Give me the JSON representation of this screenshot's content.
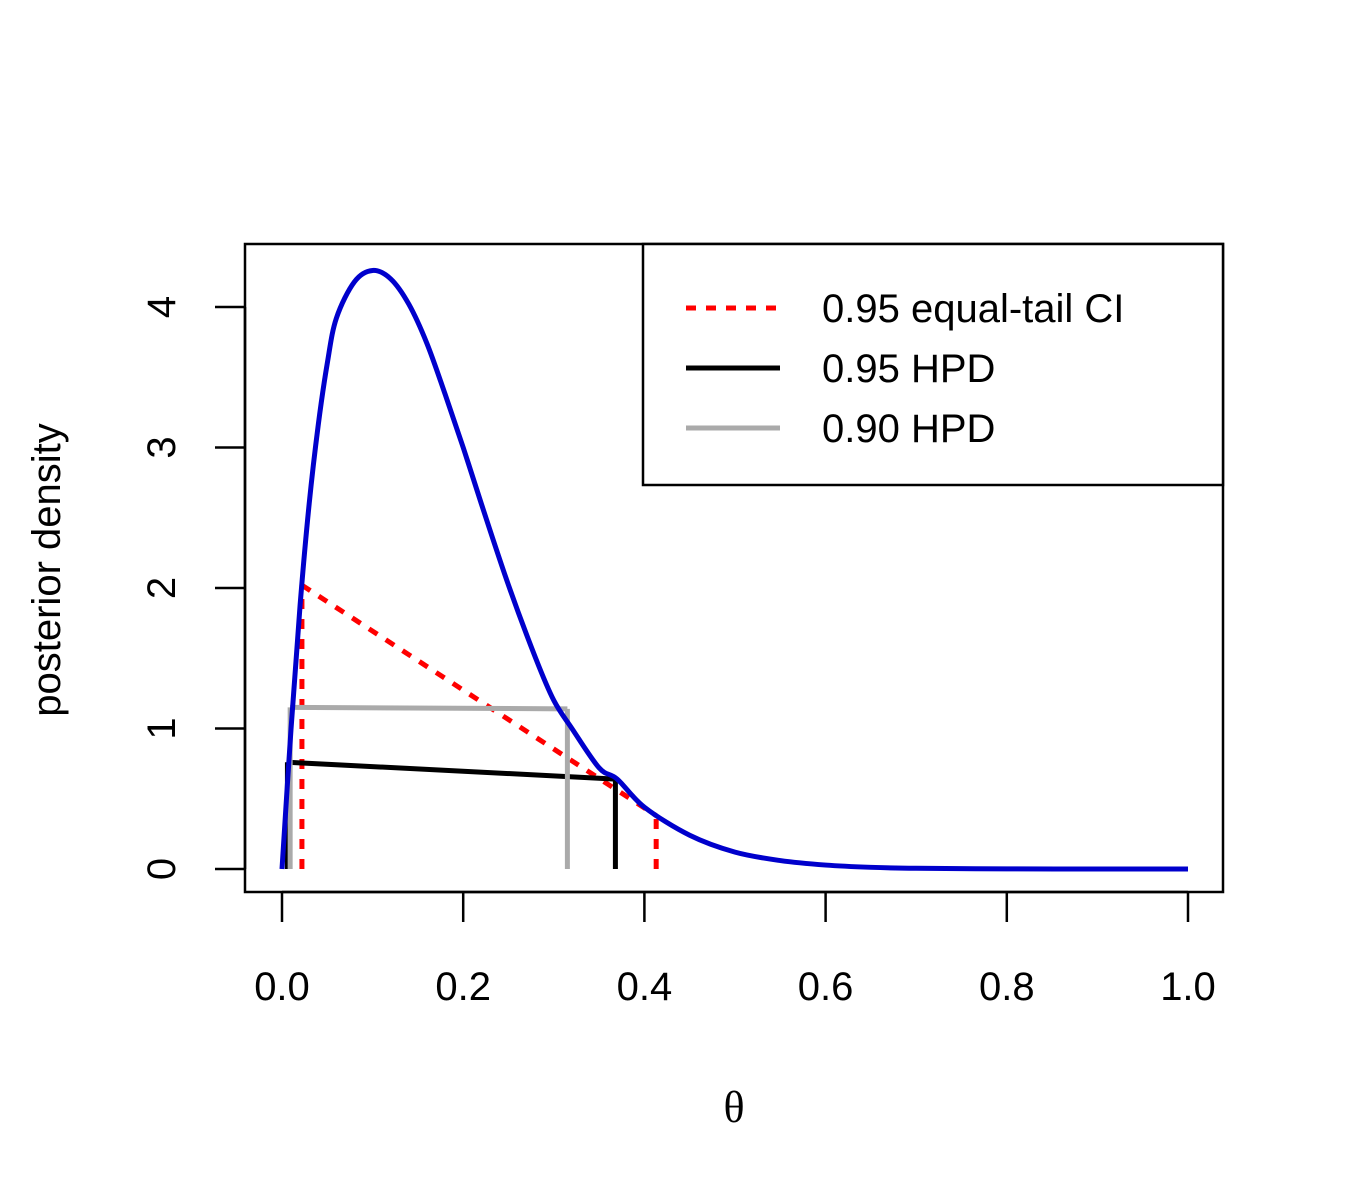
{
  "chart_data": {
    "type": "line",
    "xlabel": "θ",
    "ylabel": "posterior density",
    "xlim": [
      0,
      1
    ],
    "ylim": [
      0,
      4.26
    ],
    "x_ticks": [
      "0.0",
      "0.2",
      "0.4",
      "0.6",
      "0.8",
      "1.0"
    ],
    "y_ticks": [
      "0",
      "1",
      "2",
      "3",
      "4"
    ],
    "x_tick_values": [
      0,
      0.2,
      0.4,
      0.6,
      0.8,
      1.0
    ],
    "y_tick_values": [
      0,
      1,
      2,
      3,
      4
    ],
    "density": {
      "color": "#0000CC",
      "x": [
        0,
        0.01,
        0.02,
        0.03,
        0.04,
        0.05,
        0.06,
        0.08,
        0.1,
        0.12,
        0.14,
        0.16,
        0.18,
        0.2,
        0.22,
        0.25,
        0.28,
        0.3,
        0.32,
        0.35,
        0.37,
        0.4,
        0.45,
        0.5,
        0.55,
        0.6,
        0.65,
        0.7,
        0.8,
        0.9,
        1.0
      ],
      "y": [
        0,
        1.0,
        1.88,
        2.6,
        3.16,
        3.6,
        3.92,
        4.18,
        4.26,
        4.2,
        4.02,
        3.74,
        3.38,
        3.0,
        2.6,
        2.02,
        1.5,
        1.2,
        1.0,
        0.72,
        0.64,
        0.44,
        0.24,
        0.12,
        0.06,
        0.028,
        0.012,
        0.005,
        0.001,
        0.0,
        0.0
      ]
    },
    "intervals": [
      {
        "label": "0.95 equal-tail CI",
        "color": "#FF0000",
        "style": "dotted",
        "lower": 0.022,
        "upper": 0.413,
        "lower_height": 2.02,
        "upper_height": 0.38
      },
      {
        "label": "0.95 HPD",
        "color": "#000000",
        "style": "solid",
        "lower": 0.006,
        "upper": 0.368,
        "lower_height": 0.76,
        "upper_height": 0.64
      },
      {
        "label": "0.90 HPD",
        "color": "#AAAAAA",
        "style": "solid",
        "lower": 0.009,
        "upper": 0.315,
        "lower_height": 1.15,
        "upper_height": 1.14
      }
    ],
    "legend_position": "top-right"
  }
}
